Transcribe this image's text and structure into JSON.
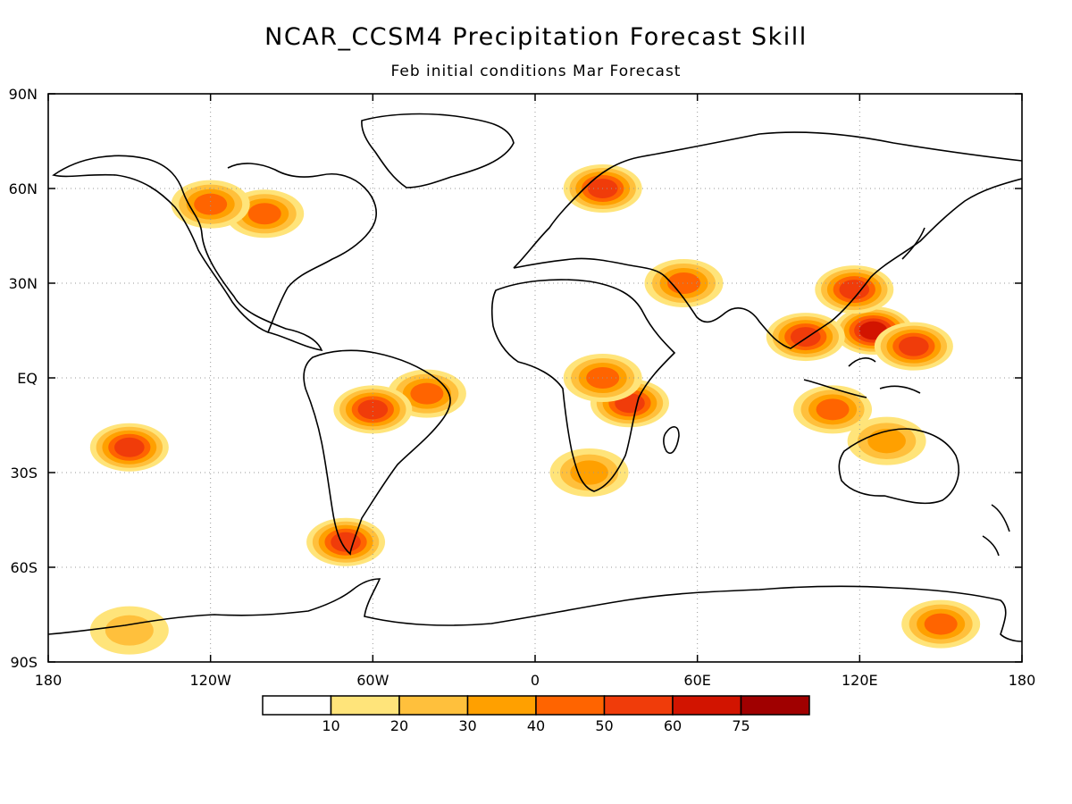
{
  "title": "NCAR_CCSM4 Precipitation Forecast Skill",
  "subtitle": "Feb initial conditions  Mar Forecast",
  "map": {
    "projection": "equirectangular",
    "lon_range": [
      -180,
      180
    ],
    "lat_range": [
      -90,
      90
    ],
    "grid": "dotted",
    "lat_ticks": [
      {
        "value": 90,
        "label": "90N"
      },
      {
        "value": 60,
        "label": "60N"
      },
      {
        "value": 30,
        "label": "30N"
      },
      {
        "value": 0,
        "label": "EQ"
      },
      {
        "value": -30,
        "label": "30S"
      },
      {
        "value": -60,
        "label": "60S"
      },
      {
        "value": -90,
        "label": "90S"
      }
    ],
    "lon_ticks": [
      {
        "value": -180,
        "label": "180"
      },
      {
        "value": -120,
        "label": "120W"
      },
      {
        "value": -60,
        "label": "60W"
      },
      {
        "value": 0,
        "label": "0"
      },
      {
        "value": 60,
        "label": "60E"
      },
      {
        "value": 120,
        "label": "120E"
      },
      {
        "value": 180,
        "label": "180"
      }
    ]
  },
  "colorbar": {
    "bins": [
      {
        "color": "#ffffff"
      },
      {
        "color": "#ffe47a"
      },
      {
        "color": "#ffc03c"
      },
      {
        "color": "#ffa000"
      },
      {
        "color": "#ff6400"
      },
      {
        "color": "#f03c0a"
      },
      {
        "color": "#d21400"
      },
      {
        "color": "#a00000"
      }
    ],
    "labels": [
      "10",
      "20",
      "30",
      "40",
      "50",
      "60",
      "75"
    ]
  },
  "chart_data": {
    "type": "heatmap",
    "title": "NCAR_CCSM4 Precipitation Forecast Skill",
    "subtitle": "Feb initial conditions  Mar Forecast",
    "levels": [
      10,
      20,
      30,
      40,
      50,
      60,
      75
    ],
    "regions": [
      {
        "lon": 125,
        "lat": 15,
        "value": 60
      },
      {
        "lon": 100,
        "lat": 13,
        "value": 50
      },
      {
        "lon": 140,
        "lat": 10,
        "value": 55
      },
      {
        "lon": 118,
        "lat": 28,
        "value": 50
      },
      {
        "lon": 110,
        "lat": -10,
        "value": 40
      },
      {
        "lon": 130,
        "lat": -20,
        "value": 30
      },
      {
        "lon": 25,
        "lat": 60,
        "value": 50
      },
      {
        "lon": 35,
        "lat": -8,
        "value": 50
      },
      {
        "lon": 25,
        "lat": 0,
        "value": 40
      },
      {
        "lon": -40,
        "lat": -5,
        "value": 45
      },
      {
        "lon": -60,
        "lat": -10,
        "value": 55
      },
      {
        "lon": -150,
        "lat": -22,
        "value": 50
      },
      {
        "lon": -70,
        "lat": -52,
        "value": 50
      },
      {
        "lon": 150,
        "lat": -78,
        "value": 40
      },
      {
        "lon": -150,
        "lat": -80,
        "value": 25
      },
      {
        "lon": 55,
        "lat": 30,
        "value": 40
      },
      {
        "lon": -100,
        "lat": 52,
        "value": 40
      },
      {
        "lon": -120,
        "lat": 55,
        "value": 40
      },
      {
        "lon": 20,
        "lat": -30,
        "value": 30
      }
    ]
  }
}
